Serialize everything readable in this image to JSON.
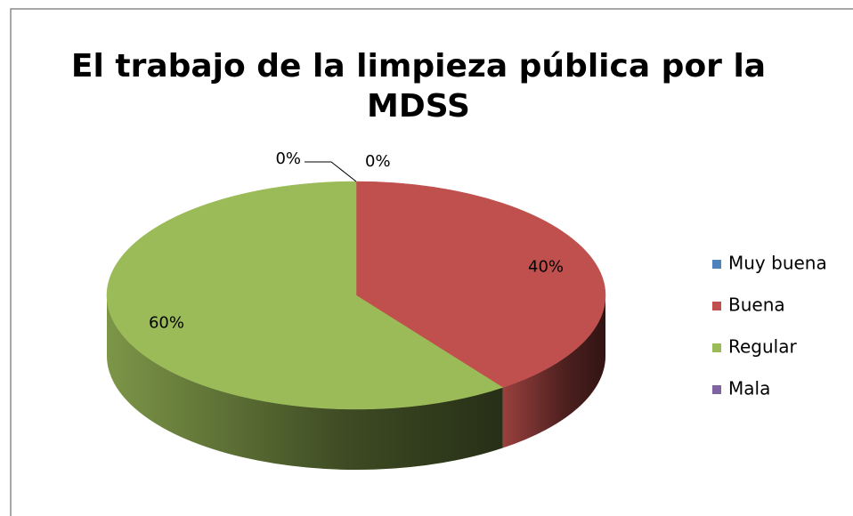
{
  "chart_data": {
    "type": "pie",
    "title_lines": [
      "El trabajo de la limpieza pública por la",
      "MDSS"
    ],
    "categories": [
      "Muy buena",
      "Buena",
      "Regular",
      "Mala"
    ],
    "values": [
      0,
      40,
      60,
      0
    ],
    "value_labels": [
      "0%",
      "40%",
      "60%",
      "0%"
    ],
    "colors": [
      "#4f81bd",
      "#c0504d",
      "#9bbb59",
      "#8064a2"
    ],
    "legend": "right"
  }
}
